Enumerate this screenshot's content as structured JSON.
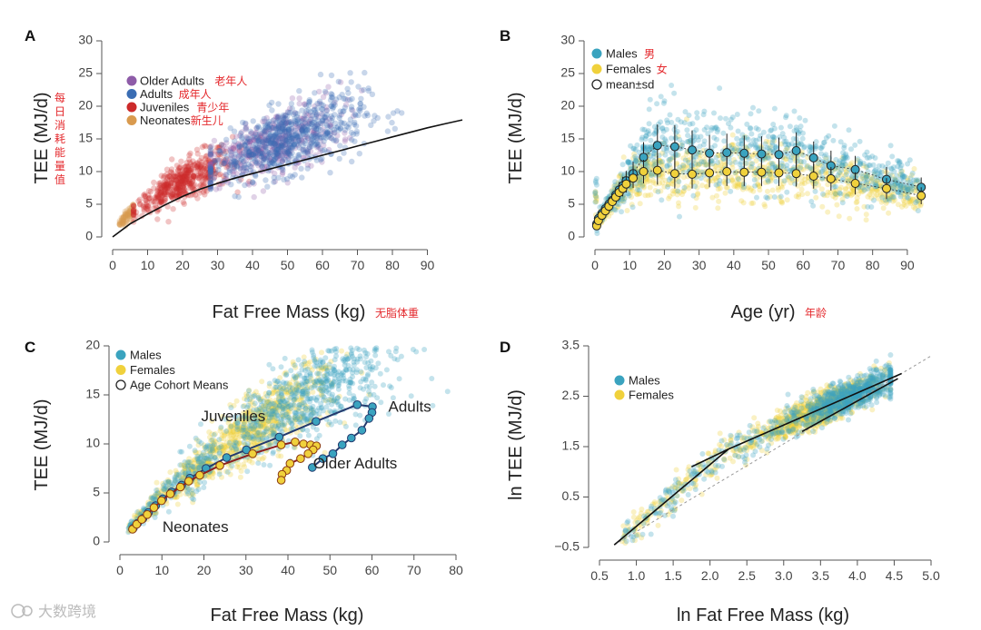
{
  "watermark": "大数跨境",
  "colors": {
    "older_adults": "#8e5ca8",
    "adults": "#3a6db3",
    "juveniles": "#cc2a2a",
    "neonates": "#d99a4e",
    "males": "#3aa3bf",
    "females": "#f0d13c",
    "chinese_labels": "#e4282c"
  },
  "chart_data": [
    {
      "panel": "A",
      "type": "scatter",
      "xlabel": "Fat Free Mass (kg)",
      "xlabel_zh": "无脂体重",
      "ylabel": "TEE (MJ/d)",
      "ylabel_zh": "每日消耗能量值",
      "xlim": [
        0,
        100
      ],
      "ylim": [
        0,
        30
      ],
      "x_ticks": [
        0,
        10,
        20,
        30,
        40,
        50,
        60,
        70,
        80,
        90
      ],
      "y_ticks": [
        0,
        5,
        10,
        15,
        20,
        25,
        30
      ],
      "legend": [
        {
          "name": "Older Adults",
          "zh": "老年人",
          "color_key": "older_adults"
        },
        {
          "name": "Adults",
          "zh": "成年人",
          "color_key": "adults"
        },
        {
          "name": "Juveniles",
          "zh": "青少年",
          "color_key": "juveniles"
        },
        {
          "name": "Neonates",
          "zh": "新生儿",
          "color_key": "neonates"
        }
      ],
      "fit_line": {
        "x": [
          0,
          5,
          10,
          15,
          20,
          25,
          30,
          35,
          40,
          45,
          50,
          55,
          60,
          65,
          70,
          75,
          80,
          85,
          90,
          95,
          100
        ],
        "y": [
          0.0,
          2.0,
          3.5,
          4.9,
          6.2,
          7.3,
          8.2,
          9.0,
          9.7,
          10.4,
          11.1,
          11.8,
          12.5,
          13.2,
          13.9,
          14.6,
          15.3,
          16.0,
          16.7,
          17.3,
          17.9
        ]
      }
    },
    {
      "panel": "B",
      "type": "scatter",
      "xlabel": "Age (yr)",
      "xlabel_zh": "年龄",
      "ylabel": "TEE (MJ/d)",
      "xlim": [
        0,
        95
      ],
      "ylim": [
        0,
        30
      ],
      "x_ticks": [
        0,
        10,
        20,
        30,
        40,
        50,
        60,
        70,
        80,
        90
      ],
      "y_ticks": [
        0,
        5,
        10,
        15,
        20,
        25,
        30
      ],
      "legend": [
        {
          "name": "Males",
          "zh": "男",
          "color_key": "males"
        },
        {
          "name": "Females",
          "zh": "女",
          "color_key": "females"
        },
        {
          "name": "mean±sd",
          "zh": "",
          "color_key": ""
        }
      ],
      "series": [
        {
          "name": "Males",
          "points": [
            [
              0.5,
              2.0,
              0.5
            ],
            [
              1,
              2.8,
              0.6
            ],
            [
              2,
              3.6,
              0.7
            ],
            [
              3,
              4.3,
              0.8
            ],
            [
              4,
              5.0,
              0.9
            ],
            [
              5,
              5.6,
              1.0
            ],
            [
              6,
              6.4,
              1.1
            ],
            [
              7,
              7.2,
              1.2
            ],
            [
              8,
              7.8,
              1.4
            ],
            [
              9,
              8.6,
              1.5
            ],
            [
              11,
              9.7,
              1.8
            ],
            [
              14,
              12.2,
              2.3
            ],
            [
              18,
              14.0,
              3.2
            ],
            [
              23,
              13.8,
              3.3
            ],
            [
              28,
              13.3,
              3.0
            ],
            [
              33,
              12.8,
              2.8
            ],
            [
              38,
              12.9,
              2.9
            ],
            [
              43,
              12.8,
              2.7
            ],
            [
              48,
              12.7,
              2.7
            ],
            [
              53,
              12.6,
              2.6
            ],
            [
              58,
              13.2,
              2.8
            ],
            [
              63,
              12.1,
              2.5
            ],
            [
              68,
              10.9,
              2.3
            ],
            [
              75,
              10.3,
              2.1
            ],
            [
              84,
              8.8,
              1.9
            ],
            [
              94,
              7.6,
              1.5
            ]
          ]
        },
        {
          "name": "Females",
          "points": [
            [
              0.5,
              1.7,
              0.4
            ],
            [
              1,
              2.5,
              0.5
            ],
            [
              2,
              3.3,
              0.6
            ],
            [
              3,
              4.0,
              0.7
            ],
            [
              4,
              4.7,
              0.8
            ],
            [
              5,
              5.4,
              0.9
            ],
            [
              6,
              6.1,
              1.0
            ],
            [
              7,
              6.8,
              1.1
            ],
            [
              8,
              7.4,
              1.2
            ],
            [
              9,
              8.1,
              1.3
            ],
            [
              11,
              9.0,
              1.5
            ],
            [
              14,
              10.0,
              1.8
            ],
            [
              18,
              10.2,
              2.2
            ],
            [
              23,
              9.7,
              2.3
            ],
            [
              28,
              9.6,
              2.2
            ],
            [
              33,
              9.8,
              2.2
            ],
            [
              38,
              10.0,
              2.2
            ],
            [
              43,
              9.9,
              2.1
            ],
            [
              48,
              9.9,
              2.1
            ],
            [
              53,
              9.8,
              2.0
            ],
            [
              58,
              9.7,
              2.0
            ],
            [
              63,
              9.3,
              1.9
            ],
            [
              68,
              8.9,
              1.8
            ],
            [
              75,
              8.2,
              1.7
            ],
            [
              84,
              7.4,
              1.6
            ],
            [
              94,
              6.3,
              1.3
            ]
          ]
        }
      ]
    },
    {
      "panel": "C",
      "type": "scatter",
      "xlabel": "Fat Free Mass (kg)",
      "ylabel": "TEE (MJ/d)",
      "xlim": [
        0,
        80
      ],
      "ylim": [
        0,
        20
      ],
      "x_ticks": [
        0,
        10,
        20,
        30,
        40,
        50,
        60,
        70,
        80
      ],
      "y_ticks": [
        0,
        5,
        10,
        15,
        20
      ],
      "legend": [
        {
          "name": "Males",
          "color_key": "males"
        },
        {
          "name": "Females",
          "color_key": "females"
        },
        {
          "name": "Age Cohort Means",
          "color_key": ""
        }
      ],
      "annotations": [
        {
          "text": "Juveniles",
          "x": 27,
          "y": 12.3
        },
        {
          "text": "Adults",
          "x": 69,
          "y": 13.3
        },
        {
          "text": "Older Adults",
          "x": 56,
          "y": 7.5
        },
        {
          "text": "Neonates",
          "x": 18,
          "y": 1.0
        }
      ],
      "series": [
        {
          "name": "Males",
          "points": [
            [
              3.2,
              1.4
            ],
            [
              4.2,
              1.9
            ],
            [
              5.5,
              2.4
            ],
            [
              6.8,
              3.0
            ],
            [
              8.5,
              3.7
            ],
            [
              10.2,
              4.4
            ],
            [
              12.3,
              5.1
            ],
            [
              14.7,
              5.8
            ],
            [
              16.7,
              6.5
            ],
            [
              20.5,
              7.5
            ],
            [
              25.4,
              8.6
            ],
            [
              30.1,
              9.4
            ],
            [
              37.9,
              10.7
            ],
            [
              46.7,
              12.3
            ],
            [
              56.5,
              14.0
            ],
            [
              60.1,
              13.8
            ],
            [
              60.0,
              13.2
            ],
            [
              59.3,
              12.6
            ],
            [
              57.6,
              11.4
            ],
            [
              55.1,
              10.6
            ],
            [
              52.9,
              9.9
            ],
            [
              50.7,
              9.0
            ],
            [
              48.3,
              8.5
            ],
            [
              45.8,
              7.6
            ]
          ]
        },
        {
          "name": "Females",
          "points": [
            [
              3.0,
              1.3
            ],
            [
              4.0,
              1.8
            ],
            [
              5.2,
              2.3
            ],
            [
              6.5,
              2.8
            ],
            [
              8.1,
              3.5
            ],
            [
              9.9,
              4.2
            ],
            [
              12.0,
              4.9
            ],
            [
              14.4,
              5.6
            ],
            [
              16.4,
              6.2
            ],
            [
              19.0,
              6.8
            ],
            [
              23.8,
              7.8
            ],
            [
              31.6,
              9.0
            ],
            [
              38.4,
              9.9
            ],
            [
              41.7,
              10.2
            ],
            [
              43.7,
              10.0
            ],
            [
              45.4,
              9.9
            ],
            [
              46.8,
              9.8
            ],
            [
              46.0,
              9.4
            ],
            [
              44.8,
              9.0
            ],
            [
              43.0,
              8.5
            ],
            [
              40.5,
              8.0
            ],
            [
              39.7,
              7.3
            ],
            [
              38.6,
              6.9
            ],
            [
              38.4,
              6.3
            ]
          ]
        }
      ]
    },
    {
      "panel": "D",
      "type": "scatter",
      "xlabel": "ln Fat Free Mass (kg)",
      "ylabel": "ln TEE (MJ/d)",
      "xlim": [
        0.5,
        5.0
      ],
      "ylim": [
        -0.5,
        3.5
      ],
      "x_ticks": [
        "0.5",
        "1.0",
        "1.5",
        "2.0",
        "2.5",
        "3.0",
        "3.5",
        "4.0",
        "4.5",
        "5.0"
      ],
      "y_ticks": [
        "−0.5",
        "0.5",
        "1.5",
        "2.5",
        "3.5"
      ],
      "legend": [
        {
          "name": "Males",
          "color_key": "males"
        },
        {
          "name": "Females",
          "color_key": "females"
        }
      ],
      "segments": [
        {
          "x": [
            0.7,
            2.25
          ],
          "y": [
            -0.45,
            1.45
          ]
        },
        {
          "x": [
            1.75,
            2.25
          ],
          "y": [
            1.1,
            1.45
          ]
        },
        {
          "x": [
            2.25,
            4.6
          ],
          "y": [
            1.45,
            2.95
          ]
        },
        {
          "x": [
            3.25,
            4.55
          ],
          "y": [
            1.8,
            2.85
          ]
        }
      ],
      "reference_line": {
        "x": [
          0.7,
          5.0
        ],
        "y": [
          -0.45,
          3.3
        ]
      }
    }
  ]
}
